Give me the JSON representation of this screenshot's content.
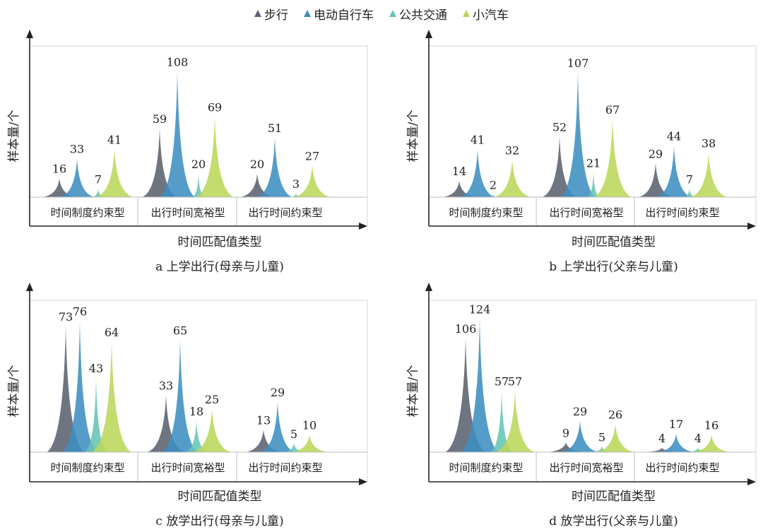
{
  "legend": {
    "items": [
      {
        "label": "步行",
        "color": "#5a6270"
      },
      {
        "label": "电动自行车",
        "color": "#3e8fc0"
      },
      {
        "label": "公共交通",
        "color": "#66c4b4"
      },
      {
        "label": "小汽车",
        "color": "#b9d75a"
      }
    ]
  },
  "chart_data": [
    {
      "type": "area",
      "caption": "a 上学出行(母亲与儿童)",
      "xlabel": "时间匹配值类型",
      "ylabel": "样本量/个",
      "categories": [
        "时间制度约束型",
        "出行时间宽裕型",
        "出行时间约束型"
      ],
      "ymax": 124,
      "series": [
        {
          "name": "步行",
          "values": [
            16,
            59,
            20
          ]
        },
        {
          "name": "电动自行车",
          "values": [
            33,
            108,
            51
          ]
        },
        {
          "name": "公共交通",
          "values": [
            7,
            20,
            3
          ]
        },
        {
          "name": "小汽车",
          "values": [
            41,
            69,
            27
          ]
        }
      ]
    },
    {
      "type": "area",
      "caption": "b 上学出行(父亲与儿童)",
      "xlabel": "时间匹配值类型",
      "ylabel": "样本量/个",
      "categories": [
        "时间制度约束型",
        "出行时间宽裕型",
        "出行时间约束型"
      ],
      "ymax": 124,
      "series": [
        {
          "name": "步行",
          "values": [
            14,
            52,
            29
          ]
        },
        {
          "name": "电动自行车",
          "values": [
            41,
            107,
            44
          ]
        },
        {
          "name": "公共交通",
          "values": [
            2,
            21,
            7
          ]
        },
        {
          "name": "小汽车",
          "values": [
            32,
            67,
            38
          ]
        }
      ]
    },
    {
      "type": "area",
      "caption": "c 放学出行(母亲与儿童)",
      "xlabel": "时间匹配值类型",
      "ylabel": "样本量/个",
      "categories": [
        "时间制度约束型",
        "出行时间宽裕型",
        "出行时间约束型"
      ],
      "ymax": 84,
      "series": [
        {
          "name": "步行",
          "values": [
            73,
            33,
            13
          ]
        },
        {
          "name": "电动自行车",
          "values": [
            76,
            65,
            29
          ]
        },
        {
          "name": "公共交通",
          "values": [
            43,
            18,
            5
          ]
        },
        {
          "name": "小汽车",
          "values": [
            64,
            25,
            10
          ]
        }
      ]
    },
    {
      "type": "area",
      "caption": "d 放学出行(父亲与儿童)",
      "xlabel": "时间匹配值类型",
      "ylabel": "样本量/个",
      "categories": [
        "时间制度约束型",
        "出行时间宽裕型",
        "出行时间约束型"
      ],
      "ymax": 135,
      "series": [
        {
          "name": "步行",
          "values": [
            106,
            9,
            4
          ]
        },
        {
          "name": "电动自行车",
          "values": [
            124,
            29,
            17
          ]
        },
        {
          "name": "公共交通",
          "values": [
            57,
            5,
            4
          ]
        },
        {
          "name": "小汽车",
          "values": [
            57,
            26,
            16
          ]
        }
      ]
    }
  ]
}
